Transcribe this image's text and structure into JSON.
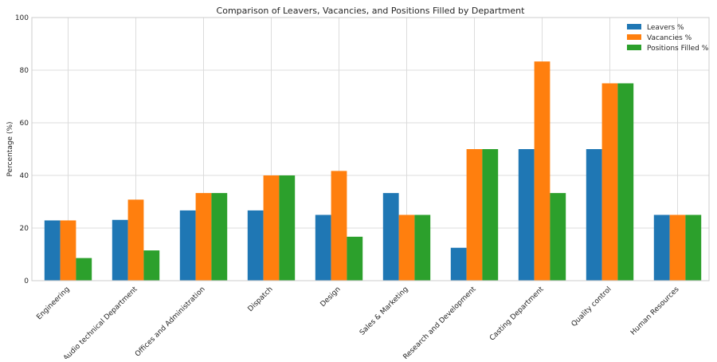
{
  "chart_data": {
    "type": "bar",
    "title": "Comparison of Leavers, Vacancies, and Positions Filled by Department",
    "xlabel": "",
    "ylabel": "Percentage (%)",
    "ylim": [
      0,
      100
    ],
    "yticks": [
      0,
      20,
      40,
      60,
      80,
      100
    ],
    "grid": true,
    "legend_position": "top-right",
    "categories": [
      "Engineering",
      "Audio technical Department",
      "Offices and Administration",
      "Dispatch",
      "Design",
      "Sales & Marketing",
      "Research and Development",
      "Casting Department",
      "Quality control",
      "Human Resources"
    ],
    "series": [
      {
        "name": "Leavers %",
        "color": "#1f77b4",
        "values": [
          22.9,
          23.1,
          26.7,
          26.7,
          25.0,
          33.3,
          12.5,
          50.0,
          50.0,
          25.0
        ]
      },
      {
        "name": "Vacancies %",
        "color": "#ff7f0e",
        "values": [
          22.9,
          30.8,
          33.3,
          40.0,
          41.7,
          25.0,
          50.0,
          83.3,
          75.0,
          25.0
        ]
      },
      {
        "name": "Positions Filled %",
        "color": "#2ca02c",
        "values": [
          8.6,
          11.5,
          33.3,
          40.0,
          16.7,
          25.0,
          50.0,
          33.3,
          75.0,
          25.0
        ]
      }
    ]
  }
}
